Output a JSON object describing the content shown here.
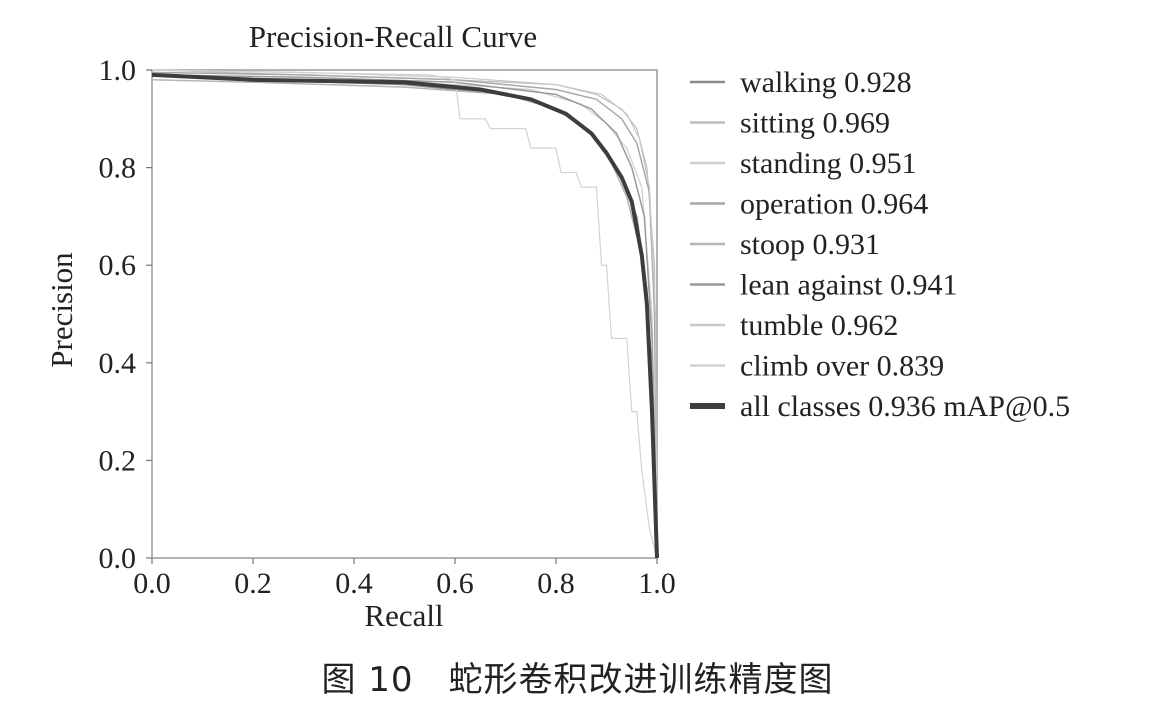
{
  "chart_data": {
    "type": "line",
    "title": "Precision-Recall Curve",
    "xlabel": "Recall",
    "ylabel": "Precision",
    "xlim": [
      0,
      1
    ],
    "ylim": [
      0,
      1
    ],
    "xticks": [
      "0.0",
      "0.2",
      "0.4",
      "0.6",
      "0.8",
      "1.0"
    ],
    "yticks": [
      "0.0",
      "0.2",
      "0.4",
      "0.6",
      "0.8",
      "1.0"
    ],
    "grid": false,
    "legend_position": "right-outside",
    "series": [
      {
        "name": "walking 0.928",
        "color": "#8a8a8a",
        "width": 1.5,
        "x": [
          0,
          0.2,
          0.5,
          0.7,
          0.8,
          0.86,
          0.9,
          0.93,
          0.96,
          0.98,
          0.99,
          1.0
        ],
        "y": [
          0.99,
          0.98,
          0.97,
          0.95,
          0.92,
          0.88,
          0.83,
          0.78,
          0.7,
          0.55,
          0.3,
          0.0
        ]
      },
      {
        "name": "sitting 0.969",
        "color": "#bdbdbd",
        "width": 1.2,
        "x": [
          0,
          0.3,
          0.6,
          0.8,
          0.88,
          0.93,
          0.96,
          0.98,
          0.995,
          1.0
        ],
        "y": [
          1.0,
          0.99,
          0.98,
          0.97,
          0.95,
          0.92,
          0.88,
          0.8,
          0.6,
          0.0
        ]
      },
      {
        "name": "standing 0.951",
        "color": "#cfcfcf",
        "width": 1.2,
        "x": [
          0,
          0.3,
          0.6,
          0.75,
          0.85,
          0.9,
          0.94,
          0.97,
          0.99,
          1.0
        ],
        "y": [
          0.99,
          0.98,
          0.97,
          0.96,
          0.93,
          0.89,
          0.84,
          0.76,
          0.5,
          0.0
        ]
      },
      {
        "name": "operation 0.964",
        "color": "#a8a8a8",
        "width": 1.5,
        "x": [
          0,
          0.3,
          0.6,
          0.8,
          0.88,
          0.93,
          0.96,
          0.985,
          0.995,
          1.0
        ],
        "y": [
          0.995,
          0.99,
          0.98,
          0.96,
          0.94,
          0.9,
          0.85,
          0.75,
          0.5,
          0.0
        ]
      },
      {
        "name": "stoop 0.931",
        "color": "#b5b5b5",
        "width": 1.5,
        "x": [
          0,
          0.2,
          0.5,
          0.7,
          0.8,
          0.87,
          0.91,
          0.94,
          0.97,
          0.99,
          1.0
        ],
        "y": [
          0.98,
          0.975,
          0.965,
          0.95,
          0.92,
          0.87,
          0.81,
          0.74,
          0.62,
          0.4,
          0.0
        ]
      },
      {
        "name": "lean against 0.941",
        "color": "#9a9a9a",
        "width": 1.5,
        "x": [
          0,
          0.3,
          0.6,
          0.8,
          0.87,
          0.92,
          0.95,
          0.975,
          0.99,
          1.0
        ],
        "y": [
          0.99,
          0.985,
          0.975,
          0.95,
          0.92,
          0.87,
          0.8,
          0.7,
          0.45,
          0.0
        ]
      },
      {
        "name": "tumble 0.962",
        "color": "#c8c8c8",
        "width": 1.2,
        "x": [
          0,
          0.3,
          0.6,
          0.8,
          0.89,
          0.94,
          0.965,
          0.985,
          0.997,
          1.0
        ],
        "y": [
          1.0,
          0.995,
          0.985,
          0.97,
          0.95,
          0.91,
          0.86,
          0.76,
          0.5,
          0.0
        ]
      },
      {
        "name": "climb over 0.839",
        "color": "#d2d2d2",
        "width": 1.2,
        "x": [
          0,
          0.55,
          0.6,
          0.61,
          0.66,
          0.67,
          0.74,
          0.75,
          0.8,
          0.81,
          0.84,
          0.85,
          0.88,
          0.89,
          0.9,
          0.91,
          0.94,
          0.95,
          0.96,
          0.97,
          0.985,
          1.0
        ],
        "y": [
          1.0,
          0.99,
          0.98,
          0.9,
          0.9,
          0.88,
          0.88,
          0.84,
          0.84,
          0.79,
          0.79,
          0.76,
          0.76,
          0.6,
          0.6,
          0.45,
          0.45,
          0.3,
          0.3,
          0.18,
          0.06,
          0.0
        ]
      },
      {
        "name": "all classes 0.936 mAP@0.5",
        "color": "#3d3d3d",
        "width": 4,
        "x": [
          0,
          0.2,
          0.5,
          0.65,
          0.75,
          0.82,
          0.87,
          0.9,
          0.93,
          0.95,
          0.97,
          0.98,
          0.99,
          0.995,
          1.0
        ],
        "y": [
          0.99,
          0.98,
          0.975,
          0.96,
          0.94,
          0.91,
          0.87,
          0.83,
          0.78,
          0.73,
          0.62,
          0.52,
          0.3,
          0.15,
          0.0
        ]
      }
    ]
  },
  "caption": "图 10　蛇形卷积改进训练精度图"
}
